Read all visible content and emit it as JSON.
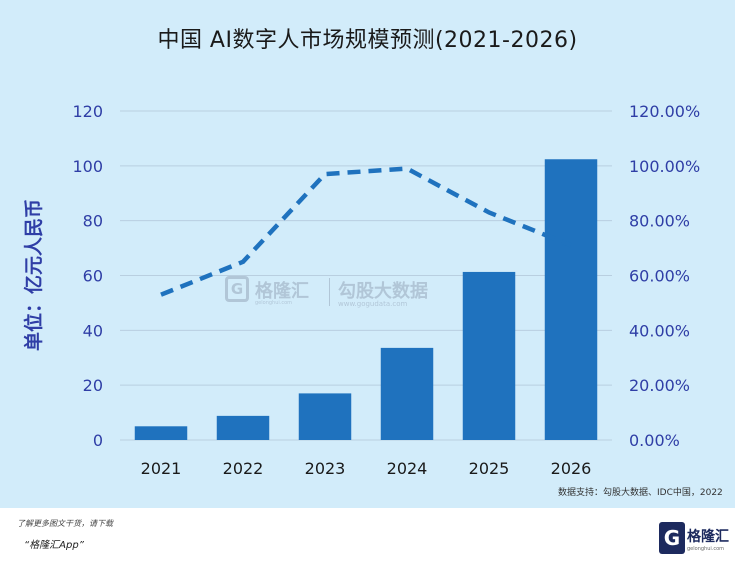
{
  "chart_data": {
    "type": "bar",
    "title": "中国 AI数字人市场规模预测(2021-2026)",
    "ylabel": "单位：亿元人民币",
    "categories": [
      "2021",
      "2022",
      "2023",
      "2024",
      "2025",
      "2026"
    ],
    "ylim": [
      0,
      120
    ],
    "y_ticks": [
      "0",
      "20",
      "40",
      "60",
      "80",
      "100",
      "120"
    ],
    "y2lim": [
      0,
      120
    ],
    "y2_ticks": [
      "0.00%",
      "20.00%",
      "40.00%",
      "60.00%",
      "80.00%",
      "100.00%",
      "120.00%"
    ],
    "series": [
      {
        "type": "bar",
        "axis": "left",
        "values": [
          5.0,
          8.8,
          17.0,
          33.6,
          61.3,
          102.4
        ]
      },
      {
        "type": "line",
        "axis": "right",
        "style": "dashed",
        "values": [
          53.0,
          65.0,
          97.0,
          99.0,
          83.0,
          71.0
        ]
      }
    ],
    "grid": true,
    "colors": {
      "bar": "#1f72be",
      "line": "#1f72be",
      "axis_text": "#2f3ea6",
      "background": "#d2ecfa"
    }
  },
  "source": "数据支持：勾股大数据、IDC中国，2022",
  "watermark": {
    "brand1": "格隆汇",
    "brand1_url": "gelonghui.com",
    "brand2": "勾股大数据",
    "brand2_url": "www.gogudata.com"
  },
  "footer": {
    "note": "了解更多图文干货，请下载",
    "app": "“格隆汇App”",
    "logo_letter": "G",
    "logo_text": "格隆汇",
    "logo_url": "gelonghui.com"
  }
}
